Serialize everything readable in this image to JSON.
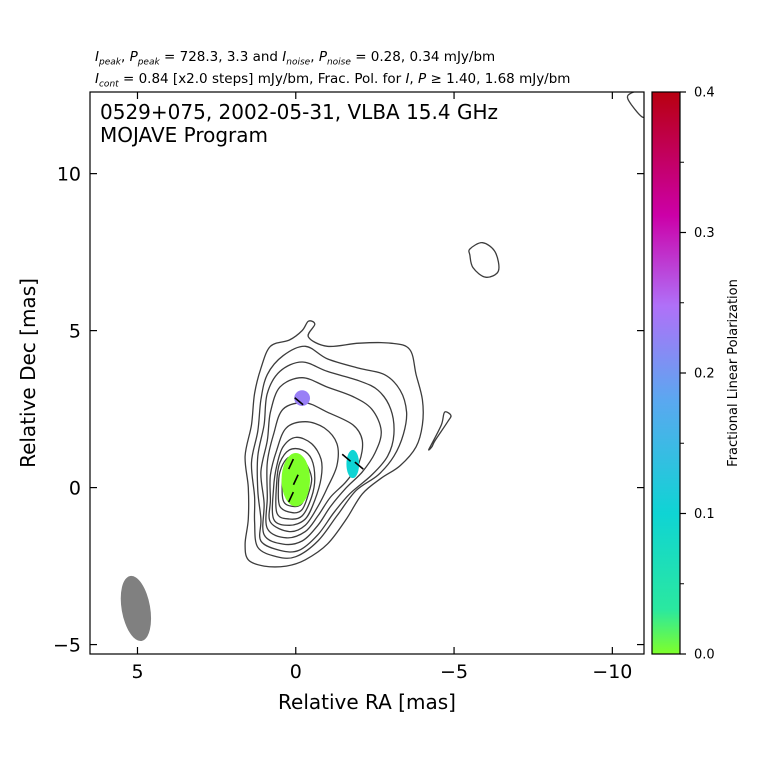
{
  "header": {
    "line1": {
      "i_peak_label": "I",
      "i_peak_sub": "peak",
      "p_peak_label": "P",
      "p_peak_sub": "peak",
      "peak_values": "= 728.3, 3.3 and",
      "i_noise_label": "I",
      "i_noise_sub": "noise",
      "p_noise_label": "P",
      "p_noise_sub": "noise",
      "noise_values": "= 0.28, 0.34 mJy/bm"
    },
    "line2": {
      "i_cont_label": "I",
      "i_cont_sub": "cont",
      "cont_values": "= 0.84 [x2.0 steps] mJy/bm, Frac. Pol. for",
      "i_label": "I",
      "p_label": "P",
      "frac_values": "≥ 1.40, 1.68 mJy/bm"
    }
  },
  "chart_data": {
    "type": "contour",
    "annotation_line1": "0529+075, 2002-05-31, VLBA 15.4 GHz",
    "annotation_line2": "MOJAVE Program",
    "xlabel": "Relative RA [mas]",
    "ylabel": "Relative Dec [mas]",
    "xlim": [
      6.5,
      -11
    ],
    "ylim": [
      -5.3,
      12.6
    ],
    "x_ticks": [
      5,
      0,
      -5,
      -10
    ],
    "x_tick_labels": [
      "5",
      "0",
      "−5",
      "−10"
    ],
    "y_ticks": [
      -5,
      0,
      5,
      10
    ],
    "y_tick_labels": [
      "−5",
      "0",
      "5",
      "10"
    ],
    "grid": false,
    "contour_levels_mjy": [
      0.84,
      1.68,
      3.36,
      6.72,
      13.44,
      26.88,
      53.76,
      107.52,
      215.04,
      430.08
    ],
    "beam": {
      "x": 5.05,
      "y": -3.85,
      "bmaj": 1.4,
      "bmin": 0.6,
      "pa_deg": -10,
      "color": "#808080"
    },
    "contours": [
      {
        "level": 1,
        "points": [
          [
            1.5,
            -2.3
          ],
          [
            1.0,
            -2.5
          ],
          [
            0.3,
            -2.5
          ],
          [
            -0.3,
            -2.3
          ],
          [
            -1.0,
            -1.8
          ],
          [
            -1.6,
            -1.0
          ],
          [
            -2.1,
            -0.2
          ],
          [
            -2.7,
            0.3
          ],
          [
            -3.3,
            0.7
          ],
          [
            -3.8,
            1.3
          ],
          [
            -4.0,
            2.0
          ],
          [
            -4.0,
            2.8
          ],
          [
            -3.8,
            3.6
          ],
          [
            -3.6,
            4.4
          ],
          [
            -3.0,
            4.6
          ],
          [
            -2.0,
            4.6
          ],
          [
            -1.0,
            4.5
          ],
          [
            -0.4,
            4.8
          ],
          [
            -0.6,
            5.2
          ],
          [
            -0.4,
            5.3
          ],
          [
            -0.2,
            5.0
          ],
          [
            0.2,
            4.7
          ],
          [
            0.8,
            4.5
          ],
          [
            1.1,
            3.8
          ],
          [
            1.3,
            3.0
          ],
          [
            1.4,
            2.0
          ],
          [
            1.6,
            1.0
          ],
          [
            1.5,
            0.0
          ],
          [
            1.5,
            -1.0
          ],
          [
            1.6,
            -1.8
          ]
        ]
      },
      {
        "level": 2,
        "points": [
          [
            1.2,
            -1.9
          ],
          [
            0.6,
            -2.2
          ],
          [
            0.0,
            -2.2
          ],
          [
            -0.7,
            -1.7
          ],
          [
            -1.3,
            -0.9
          ],
          [
            -1.9,
            -0.1
          ],
          [
            -2.6,
            0.4
          ],
          [
            -3.1,
            1.0
          ],
          [
            -3.4,
            1.7
          ],
          [
            -3.5,
            2.4
          ],
          [
            -3.3,
            3.1
          ],
          [
            -2.8,
            3.6
          ],
          [
            -2.0,
            3.8
          ],
          [
            -1.0,
            4.1
          ],
          [
            -0.3,
            4.5
          ],
          [
            0.4,
            4.2
          ],
          [
            0.9,
            3.6
          ],
          [
            1.1,
            2.8
          ],
          [
            1.2,
            1.8
          ],
          [
            1.4,
            0.8
          ],
          [
            1.3,
            -0.3
          ],
          [
            1.3,
            -1.1
          ]
        ]
      },
      {
        "level": 3,
        "points": [
          [
            1.1,
            -1.7
          ],
          [
            0.5,
            -2.0
          ],
          [
            -0.1,
            -2.0
          ],
          [
            -0.7,
            -1.5
          ],
          [
            -1.2,
            -0.8
          ],
          [
            -1.7,
            -0.2
          ],
          [
            -2.4,
            0.4
          ],
          [
            -2.9,
            1.0
          ],
          [
            -3.1,
            1.7
          ],
          [
            -3.0,
            2.5
          ],
          [
            -2.6,
            3.1
          ],
          [
            -2.0,
            3.4
          ],
          [
            -1.0,
            3.7
          ],
          [
            -0.2,
            4.0
          ],
          [
            0.5,
            3.7
          ],
          [
            0.9,
            3.0
          ],
          [
            1.0,
            2.0
          ],
          [
            1.2,
            1.0
          ],
          [
            1.2,
            -0.1
          ],
          [
            1.1,
            -1.0
          ]
        ]
      },
      {
        "level": 4,
        "points": [
          [
            1.0,
            -1.5
          ],
          [
            0.4,
            -1.8
          ],
          [
            -0.2,
            -1.7
          ],
          [
            -0.7,
            -1.2
          ],
          [
            -1.1,
            -0.6
          ],
          [
            -1.6,
            0.0
          ],
          [
            -2.1,
            0.5
          ],
          [
            -2.5,
            1.1
          ],
          [
            -2.7,
            1.8
          ],
          [
            -2.4,
            2.5
          ],
          [
            -1.8,
            2.9
          ],
          [
            -1.0,
            3.2
          ],
          [
            -0.2,
            3.5
          ],
          [
            0.5,
            3.2
          ],
          [
            0.8,
            2.4
          ],
          [
            0.9,
            1.5
          ],
          [
            1.1,
            0.5
          ],
          [
            1.0,
            -0.5
          ]
        ]
      },
      {
        "level": 5,
        "points": [
          [
            0.9,
            -1.3
          ],
          [
            0.3,
            -1.6
          ],
          [
            -0.3,
            -1.4
          ],
          [
            -0.7,
            -0.9
          ],
          [
            -1.1,
            -0.3
          ],
          [
            -1.6,
            0.2
          ],
          [
            -2.0,
            0.8
          ],
          [
            -2.1,
            1.5
          ],
          [
            -1.8,
            2.0
          ],
          [
            -1.0,
            2.4
          ],
          [
            -0.3,
            2.7
          ],
          [
            0.4,
            2.5
          ],
          [
            0.7,
            1.7
          ],
          [
            0.9,
            0.8
          ],
          [
            0.9,
            -0.3
          ]
        ]
      },
      {
        "level": 6,
        "points": [
          [
            0.8,
            -1.1
          ],
          [
            0.2,
            -1.4
          ],
          [
            -0.3,
            -1.2
          ],
          [
            -0.7,
            -0.6
          ],
          [
            -1.0,
            0.0
          ],
          [
            -1.3,
            0.7
          ],
          [
            -1.3,
            1.4
          ],
          [
            -0.9,
            1.9
          ],
          [
            -0.3,
            2.1
          ],
          [
            0.3,
            1.9
          ],
          [
            0.6,
            1.2
          ],
          [
            0.8,
            0.4
          ],
          [
            0.8,
            -0.4
          ]
        ]
      },
      {
        "level": 7,
        "points": [
          [
            0.7,
            -1.0
          ],
          [
            0.2,
            -1.2
          ],
          [
            -0.3,
            -1.0
          ],
          [
            -0.6,
            -0.4
          ],
          [
            -0.8,
            0.3
          ],
          [
            -0.8,
            0.9
          ],
          [
            -0.5,
            1.4
          ],
          [
            0.0,
            1.6
          ],
          [
            0.4,
            1.3
          ],
          [
            0.6,
            0.7
          ],
          [
            0.7,
            0.0
          ]
        ]
      },
      {
        "level": 8,
        "points": [
          [
            0.6,
            -0.8
          ],
          [
            0.2,
            -1.0
          ],
          [
            -0.2,
            -0.9
          ],
          [
            -0.5,
            -0.3
          ],
          [
            -0.6,
            0.3
          ],
          [
            -0.5,
            0.9
          ],
          [
            -0.2,
            1.2
          ],
          [
            0.2,
            1.2
          ],
          [
            0.5,
            0.8
          ],
          [
            0.6,
            0.2
          ]
        ]
      },
      {
        "level": 9,
        "points": [
          [
            0.5,
            -0.6
          ],
          [
            0.1,
            -0.8
          ],
          [
            -0.2,
            -0.7
          ],
          [
            -0.4,
            -0.2
          ],
          [
            -0.5,
            0.3
          ],
          [
            -0.3,
            0.8
          ],
          [
            0.0,
            1.0
          ],
          [
            0.3,
            0.9
          ],
          [
            0.5,
            0.5
          ],
          [
            0.55,
            0.0
          ]
        ]
      },
      {
        "level": 10,
        "points": [
          [
            0.4,
            -0.4
          ],
          [
            0.1,
            -0.6
          ],
          [
            -0.2,
            -0.5
          ],
          [
            -0.3,
            0.0
          ],
          [
            -0.3,
            0.5
          ],
          [
            -0.1,
            0.8
          ],
          [
            0.2,
            0.8
          ],
          [
            0.4,
            0.4
          ]
        ]
      },
      {
        "level": 1,
        "points": [
          [
            -4.4,
            1.5
          ],
          [
            -4.8,
            2.1
          ],
          [
            -4.9,
            2.3
          ],
          [
            -4.7,
            2.4
          ],
          [
            -4.6,
            2.0
          ],
          [
            -4.3,
            1.4
          ],
          [
            -4.2,
            1.2
          ],
          [
            -4.3,
            1.3
          ]
        ]
      },
      {
        "level": 1,
        "points": [
          [
            -5.5,
            7.6
          ],
          [
            -5.9,
            7.8
          ],
          [
            -6.3,
            7.5
          ],
          [
            -6.4,
            6.9
          ],
          [
            -6.0,
            6.7
          ],
          [
            -5.6,
            7.0
          ],
          [
            -5.5,
            7.4
          ]
        ]
      },
      {
        "level": 1,
        "points": [
          [
            -11.0,
            11.8
          ],
          [
            -10.6,
            12.2
          ],
          [
            -10.5,
            12.5
          ],
          [
            -11.0,
            12.6
          ]
        ]
      }
    ],
    "fractional_polarization_patches": [
      {
        "x": 0.0,
        "y": 0.25,
        "rx": 0.45,
        "ry": 0.85,
        "frac_pol": 0.0
      },
      {
        "x": -1.8,
        "y": 0.75,
        "rx": 0.2,
        "ry": 0.45,
        "frac_pol": 0.1
      },
      {
        "x": -0.2,
        "y": 2.85,
        "rx": 0.25,
        "ry": 0.25,
        "frac_pol": 0.23
      }
    ],
    "evpa_sticks": [
      {
        "x": 0.15,
        "y": 0.75,
        "angle_deg": 65
      },
      {
        "x": 0.0,
        "y": 0.25,
        "angle_deg": 65
      },
      {
        "x": 0.15,
        "y": -0.3,
        "angle_deg": 65
      },
      {
        "x": -1.6,
        "y": 0.95,
        "angle_deg": -40
      },
      {
        "x": -2.0,
        "y": 0.7,
        "angle_deg": -40
      },
      {
        "x": -0.1,
        "y": 2.75,
        "angle_deg": -40
      }
    ],
    "colorbar": {
      "label": "Fractional Linear Polarization",
      "range": [
        0.0,
        0.4
      ],
      "tick_values": [
        0.0,
        0.1,
        0.2,
        0.3,
        0.4
      ],
      "tick_labels": [
        "0.0",
        "0.1",
        "0.2",
        "0.3",
        "0.4"
      ],
      "minor_tick_values": [
        0.05,
        0.15,
        0.25,
        0.35
      ],
      "colormap": [
        "#7fff2a",
        "#2ae8a0",
        "#0fd4d4",
        "#5aa8f0",
        "#b070f8",
        "#cc00a8",
        "#b80010"
      ],
      "colormap_positions": [
        0.0,
        0.08,
        0.25,
        0.45,
        0.62,
        0.78,
        1.0
      ]
    },
    "colors": {
      "contour": "#3c3c3c",
      "frame": "#000000",
      "stick": "#000000"
    }
  }
}
